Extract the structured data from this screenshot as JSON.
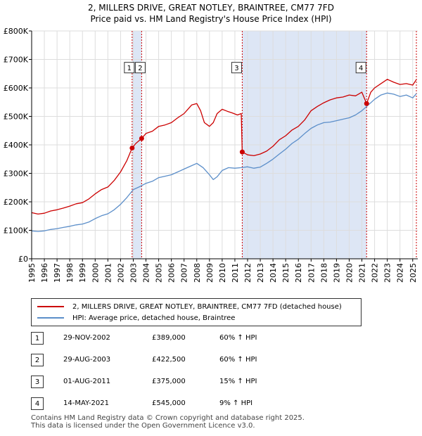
{
  "chart_data": {
    "type": "line",
    "title": "2, MILLERS DRIVE, GREAT NOTLEY, BRAINTREE, CM77 7FD",
    "subtitle": "Price paid vs. HM Land Registry's House Price Index (HPI)",
    "xlim": [
      1995,
      2025.4
    ],
    "ylim": [
      0,
      800000
    ],
    "y_ticks": [
      0,
      100000,
      200000,
      300000,
      400000,
      500000,
      600000,
      700000,
      800000
    ],
    "y_tick_labels": [
      "£0",
      "£100K",
      "£200K",
      "£300K",
      "£400K",
      "£500K",
      "£600K",
      "£700K",
      "£800K"
    ],
    "x_ticks": [
      "1995",
      "1996",
      "1997",
      "1998",
      "1999",
      "2000",
      "2001",
      "2002",
      "2003",
      "2004",
      "2005",
      "2006",
      "2007",
      "2008",
      "2009",
      "2010",
      "2011",
      "2012",
      "2013",
      "2014",
      "2015",
      "2016",
      "2017",
      "2018",
      "2019",
      "2020",
      "2021",
      "2022",
      "2023",
      "2024",
      "2025"
    ],
    "grid": true,
    "colors": {
      "property": "#cc0000",
      "hpi": "#5b8ec9",
      "shade": "#dde6f5",
      "vline": "#cc0000"
    },
    "shaded_ranges": [
      [
        2002.91,
        2003.66
      ],
      [
        2011.58,
        2021.37
      ]
    ],
    "series": [
      {
        "name": "2, MILLERS DRIVE, GREAT NOTLEY, BRAINTREE, CM77 7FD (detached house)",
        "x": [
          1995.0,
          1995.5,
          1996.0,
          1996.5,
          1997.0,
          1997.5,
          1998.0,
          1998.5,
          1999.0,
          1999.5,
          2000.0,
          2000.5,
          2001.0,
          2001.5,
          2002.0,
          2002.5,
          2002.91,
          2003.2,
          2003.66,
          2004.0,
          2004.5,
          2005.0,
          2005.5,
          2006.0,
          2006.5,
          2007.0,
          2007.3,
          2007.6,
          2008.0,
          2008.3,
          2008.6,
          2009.0,
          2009.3,
          2009.6,
          2010.0,
          2010.4,
          2010.8,
          2011.2,
          2011.5,
          2011.58,
          2012.0,
          2012.5,
          2013.0,
          2013.5,
          2014.0,
          2014.5,
          2015.0,
          2015.5,
          2016.0,
          2016.5,
          2017.0,
          2017.5,
          2018.0,
          2018.5,
          2019.0,
          2019.5,
          2020.0,
          2020.5,
          2021.0,
          2021.37,
          2021.7,
          2022.0,
          2022.5,
          2023.0,
          2023.5,
          2024.0,
          2024.5,
          2025.0,
          2025.3
        ],
        "values": [
          162000,
          157000,
          160000,
          168000,
          172000,
          178000,
          185000,
          193000,
          197000,
          210000,
          228000,
          243000,
          252000,
          275000,
          305000,
          345000,
          389000,
          405000,
          422500,
          440000,
          448000,
          465000,
          470000,
          478000,
          495000,
          510000,
          525000,
          540000,
          545000,
          520000,
          478000,
          465000,
          478000,
          510000,
          525000,
          518000,
          512000,
          505000,
          510000,
          375000,
          365000,
          362000,
          368000,
          378000,
          395000,
          418000,
          432000,
          452000,
          465000,
          488000,
          520000,
          535000,
          548000,
          558000,
          565000,
          568000,
          575000,
          572000,
          585000,
          545000,
          585000,
          600000,
          615000,
          630000,
          620000,
          612000,
          615000,
          610000,
          630000
        ],
        "color": "#cc0000"
      },
      {
        "name": "HPI: Average price, detached house, Braintree",
        "x": [
          1995.0,
          1995.5,
          1996.0,
          1996.5,
          1997.0,
          1997.5,
          1998.0,
          1998.5,
          1999.0,
          1999.5,
          2000.0,
          2000.5,
          2001.0,
          2001.5,
          2002.0,
          2002.5,
          2003.0,
          2003.5,
          2004.0,
          2004.5,
          2005.0,
          2005.5,
          2006.0,
          2006.5,
          2007.0,
          2007.5,
          2008.0,
          2008.5,
          2009.0,
          2009.3,
          2009.6,
          2010.0,
          2010.5,
          2011.0,
          2011.5,
          2012.0,
          2012.5,
          2013.0,
          2013.5,
          2014.0,
          2014.5,
          2015.0,
          2015.5,
          2016.0,
          2016.5,
          2017.0,
          2017.5,
          2018.0,
          2018.5,
          2019.0,
          2019.5,
          2020.0,
          2020.5,
          2021.0,
          2021.5,
          2022.0,
          2022.5,
          2023.0,
          2023.5,
          2024.0,
          2024.5,
          2025.0,
          2025.3
        ],
        "values": [
          98000,
          96000,
          98000,
          103000,
          106000,
          110000,
          114000,
          119000,
          122000,
          129000,
          141000,
          151000,
          158000,
          172000,
          191000,
          215000,
          243000,
          253000,
          265000,
          272000,
          285000,
          290000,
          295000,
          305000,
          315000,
          325000,
          335000,
          320000,
          295000,
          278000,
          288000,
          310000,
          320000,
          318000,
          320000,
          323000,
          318000,
          322000,
          335000,
          350000,
          368000,
          385000,
          405000,
          420000,
          440000,
          458000,
          470000,
          478000,
          480000,
          485000,
          490000,
          495000,
          505000,
          520000,
          540000,
          560000,
          575000,
          582000,
          578000,
          570000,
          575000,
          565000,
          580000
        ],
        "color": "#5b8ec9"
      }
    ],
    "transactions": [
      {
        "label": "1",
        "date": "29-NOV-2002",
        "x": 2002.91,
        "price": "£389,000",
        "value": 389000,
        "hpi": "60% ↑ HPI"
      },
      {
        "label": "2",
        "date": "29-AUG-2003",
        "x": 2003.66,
        "price": "£422,500",
        "value": 422500,
        "hpi": "60% ↑ HPI"
      },
      {
        "label": "3",
        "date": "01-AUG-2011",
        "x": 2011.58,
        "price": "£375,000",
        "value": 375000,
        "hpi": "15% ↑ HPI"
      },
      {
        "label": "4",
        "date": "14-MAY-2021",
        "x": 2021.37,
        "price": "£545,000",
        "value": 545000,
        "hpi": "9% ↑ HPI"
      }
    ]
  },
  "legend": {
    "property_label": "2, MILLERS DRIVE, GREAT NOTLEY, BRAINTREE, CM77 7FD (detached house)",
    "hpi_label": "HPI: Average price, detached house, Braintree"
  },
  "footer": {
    "line1": "Contains HM Land Registry data © Crown copyright and database right 2025.",
    "line2": "This data is licensed under the Open Government Licence v3.0."
  }
}
